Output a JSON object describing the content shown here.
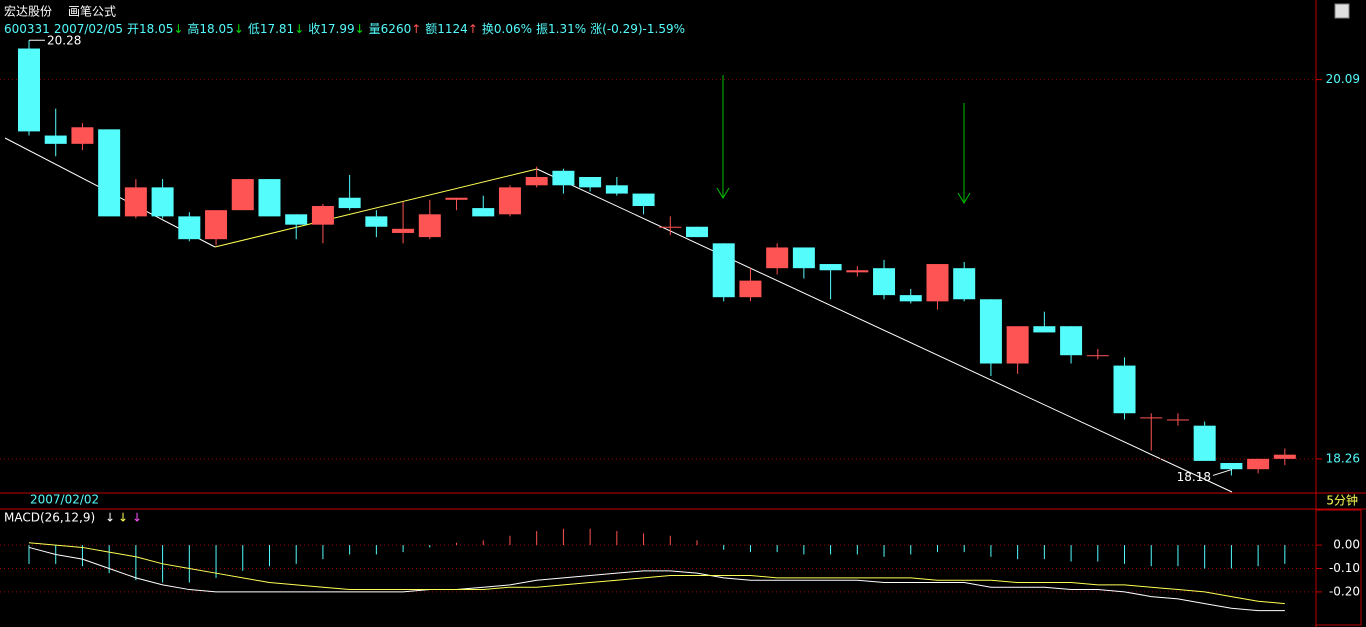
{
  "header": {
    "name": "宏达股份",
    "formula": "画笔公式",
    "info": [
      "600331",
      "2007/02/05",
      "开18.05",
      "↓",
      "高18.05",
      "↓",
      "低17.81",
      "↓",
      "收17.99",
      "↓",
      "量6260",
      "↑",
      "额1124",
      "↑",
      "换0.06%",
      "振1.31%",
      "涨(-0.29)-1.59%"
    ]
  },
  "date_label": "2007/02/02",
  "period": "5分钟",
  "chart_data": [
    {
      "type": "candlestick",
      "up_color": "#ff5454",
      "down_color": "#54fcfc",
      "ylim": [
        18.1,
        20.45
      ],
      "yticks": [
        20.09,
        18.26
      ],
      "grid": true,
      "high_label": 20.28,
      "low_label": 18.18,
      "open": [
        20.24,
        19.82,
        19.78,
        19.85,
        19.43,
        19.57,
        19.43,
        19.32,
        19.46,
        19.61,
        19.44,
        19.39,
        19.52,
        19.43,
        19.35,
        19.33,
        19.51,
        19.47,
        19.44,
        19.58,
        19.65,
        19.62,
        19.58,
        19.54,
        19.38,
        19.38,
        19.3,
        19.04,
        19.18,
        19.28,
        19.2,
        19.16,
        19.18,
        19.05,
        19.02,
        19.18,
        19.03,
        18.72,
        18.9,
        18.9,
        18.76,
        18.71,
        18.46,
        18.45,
        18.42,
        18.24,
        18.21,
        18.26
      ],
      "high": [
        20.28,
        19.95,
        19.88,
        19.85,
        19.61,
        19.61,
        19.45,
        19.46,
        19.61,
        19.61,
        19.44,
        19.49,
        19.63,
        19.46,
        19.5,
        19.51,
        19.52,
        19.53,
        19.58,
        19.67,
        19.66,
        19.62,
        19.62,
        19.54,
        19.43,
        19.38,
        19.3,
        19.18,
        19.3,
        19.28,
        19.2,
        19.19,
        19.22,
        19.08,
        19.2,
        19.21,
        19.03,
        18.9,
        18.97,
        18.9,
        18.79,
        18.75,
        18.48,
        18.48,
        18.44,
        18.24,
        18.26,
        18.31
      ],
      "low": [
        19.82,
        19.72,
        19.75,
        19.43,
        19.42,
        19.42,
        19.31,
        19.29,
        19.46,
        19.43,
        19.32,
        19.3,
        19.46,
        19.33,
        19.3,
        19.32,
        19.46,
        19.43,
        19.43,
        19.57,
        19.54,
        19.55,
        19.53,
        19.44,
        19.34,
        19.33,
        19.02,
        19.02,
        19.15,
        19.13,
        19.03,
        19.14,
        19.03,
        19.01,
        18.98,
        19.02,
        18.66,
        18.67,
        18.87,
        18.72,
        18.74,
        18.45,
        18.3,
        18.42,
        18.25,
        18.18,
        18.19,
        18.23
      ],
      "close": [
        19.84,
        19.78,
        19.86,
        19.43,
        19.57,
        19.43,
        19.32,
        19.46,
        19.61,
        19.43,
        19.39,
        19.48,
        19.47,
        19.38,
        19.37,
        19.44,
        19.52,
        19.43,
        19.57,
        19.62,
        19.58,
        19.57,
        19.54,
        19.48,
        19.38,
        19.33,
        19.04,
        19.12,
        19.28,
        19.18,
        19.17,
        19.17,
        19.05,
        19.02,
        19.2,
        19.03,
        18.72,
        18.9,
        18.87,
        18.76,
        18.76,
        18.48,
        18.46,
        18.45,
        18.25,
        18.21,
        18.26,
        18.28
      ]
    },
    {
      "type": "macd",
      "title": "MACD(26,12,9)",
      "up_color": "#ff5454",
      "down_color": "#54fcfc",
      "ylim": [
        -0.35,
        0.15
      ],
      "yticks": [
        {
          "value": 0,
          "label": "0.00"
        },
        {
          "value": -0.1,
          "label": "-0.10"
        },
        {
          "value": -0.2,
          "label": "-0.20"
        }
      ],
      "grid": true,
      "histogram": [
        -0.08,
        -0.08,
        -0.09,
        -0.12,
        -0.15,
        -0.16,
        -0.16,
        -0.14,
        -0.11,
        -0.09,
        -0.08,
        -0.06,
        -0.04,
        -0.04,
        -0.03,
        -0.01,
        0.01,
        0.02,
        0.04,
        0.06,
        0.07,
        0.07,
        0.06,
        0.05,
        0.04,
        0.02,
        -0.02,
        -0.03,
        -0.03,
        -0.04,
        -0.04,
        -0.04,
        -0.05,
        -0.04,
        -0.03,
        -0.03,
        -0.05,
        -0.06,
        -0.06,
        -0.07,
        -0.07,
        -0.08,
        -0.09,
        -0.09,
        -0.1,
        -0.1,
        -0.09,
        -0.08
      ],
      "lines": [
        {
          "color": "#ffffff",
          "values": [
            -0.01,
            -0.04,
            -0.06,
            -0.1,
            -0.14,
            -0.17,
            -0.19,
            -0.2,
            -0.2,
            -0.2,
            -0.2,
            -0.2,
            -0.2,
            -0.2,
            -0.2,
            -0.19,
            -0.19,
            -0.18,
            -0.17,
            -0.15,
            -0.14,
            -0.13,
            -0.12,
            -0.11,
            -0.11,
            -0.12,
            -0.14,
            -0.15,
            -0.15,
            -0.15,
            -0.15,
            -0.15,
            -0.16,
            -0.16,
            -0.16,
            -0.16,
            -0.18,
            -0.18,
            -0.18,
            -0.19,
            -0.19,
            -0.2,
            -0.22,
            -0.23,
            -0.25,
            -0.27,
            -0.28,
            -0.28
          ]
        },
        {
          "color": "#ffff54",
          "values": [
            0.01,
            0,
            -0.01,
            -0.03,
            -0.05,
            -0.08,
            -0.1,
            -0.12,
            -0.14,
            -0.16,
            -0.17,
            -0.18,
            -0.19,
            -0.19,
            -0.19,
            -0.19,
            -0.19,
            -0.19,
            -0.18,
            -0.18,
            -0.17,
            -0.16,
            -0.15,
            -0.14,
            -0.13,
            -0.13,
            -0.13,
            -0.13,
            -0.14,
            -0.14,
            -0.14,
            -0.14,
            -0.14,
            -0.14,
            -0.15,
            -0.15,
            -0.15,
            -0.16,
            -0.16,
            -0.16,
            -0.17,
            -0.17,
            -0.18,
            -0.19,
            -0.2,
            -0.22,
            -0.24,
            -0.25
          ]
        }
      ]
    }
  ]
}
